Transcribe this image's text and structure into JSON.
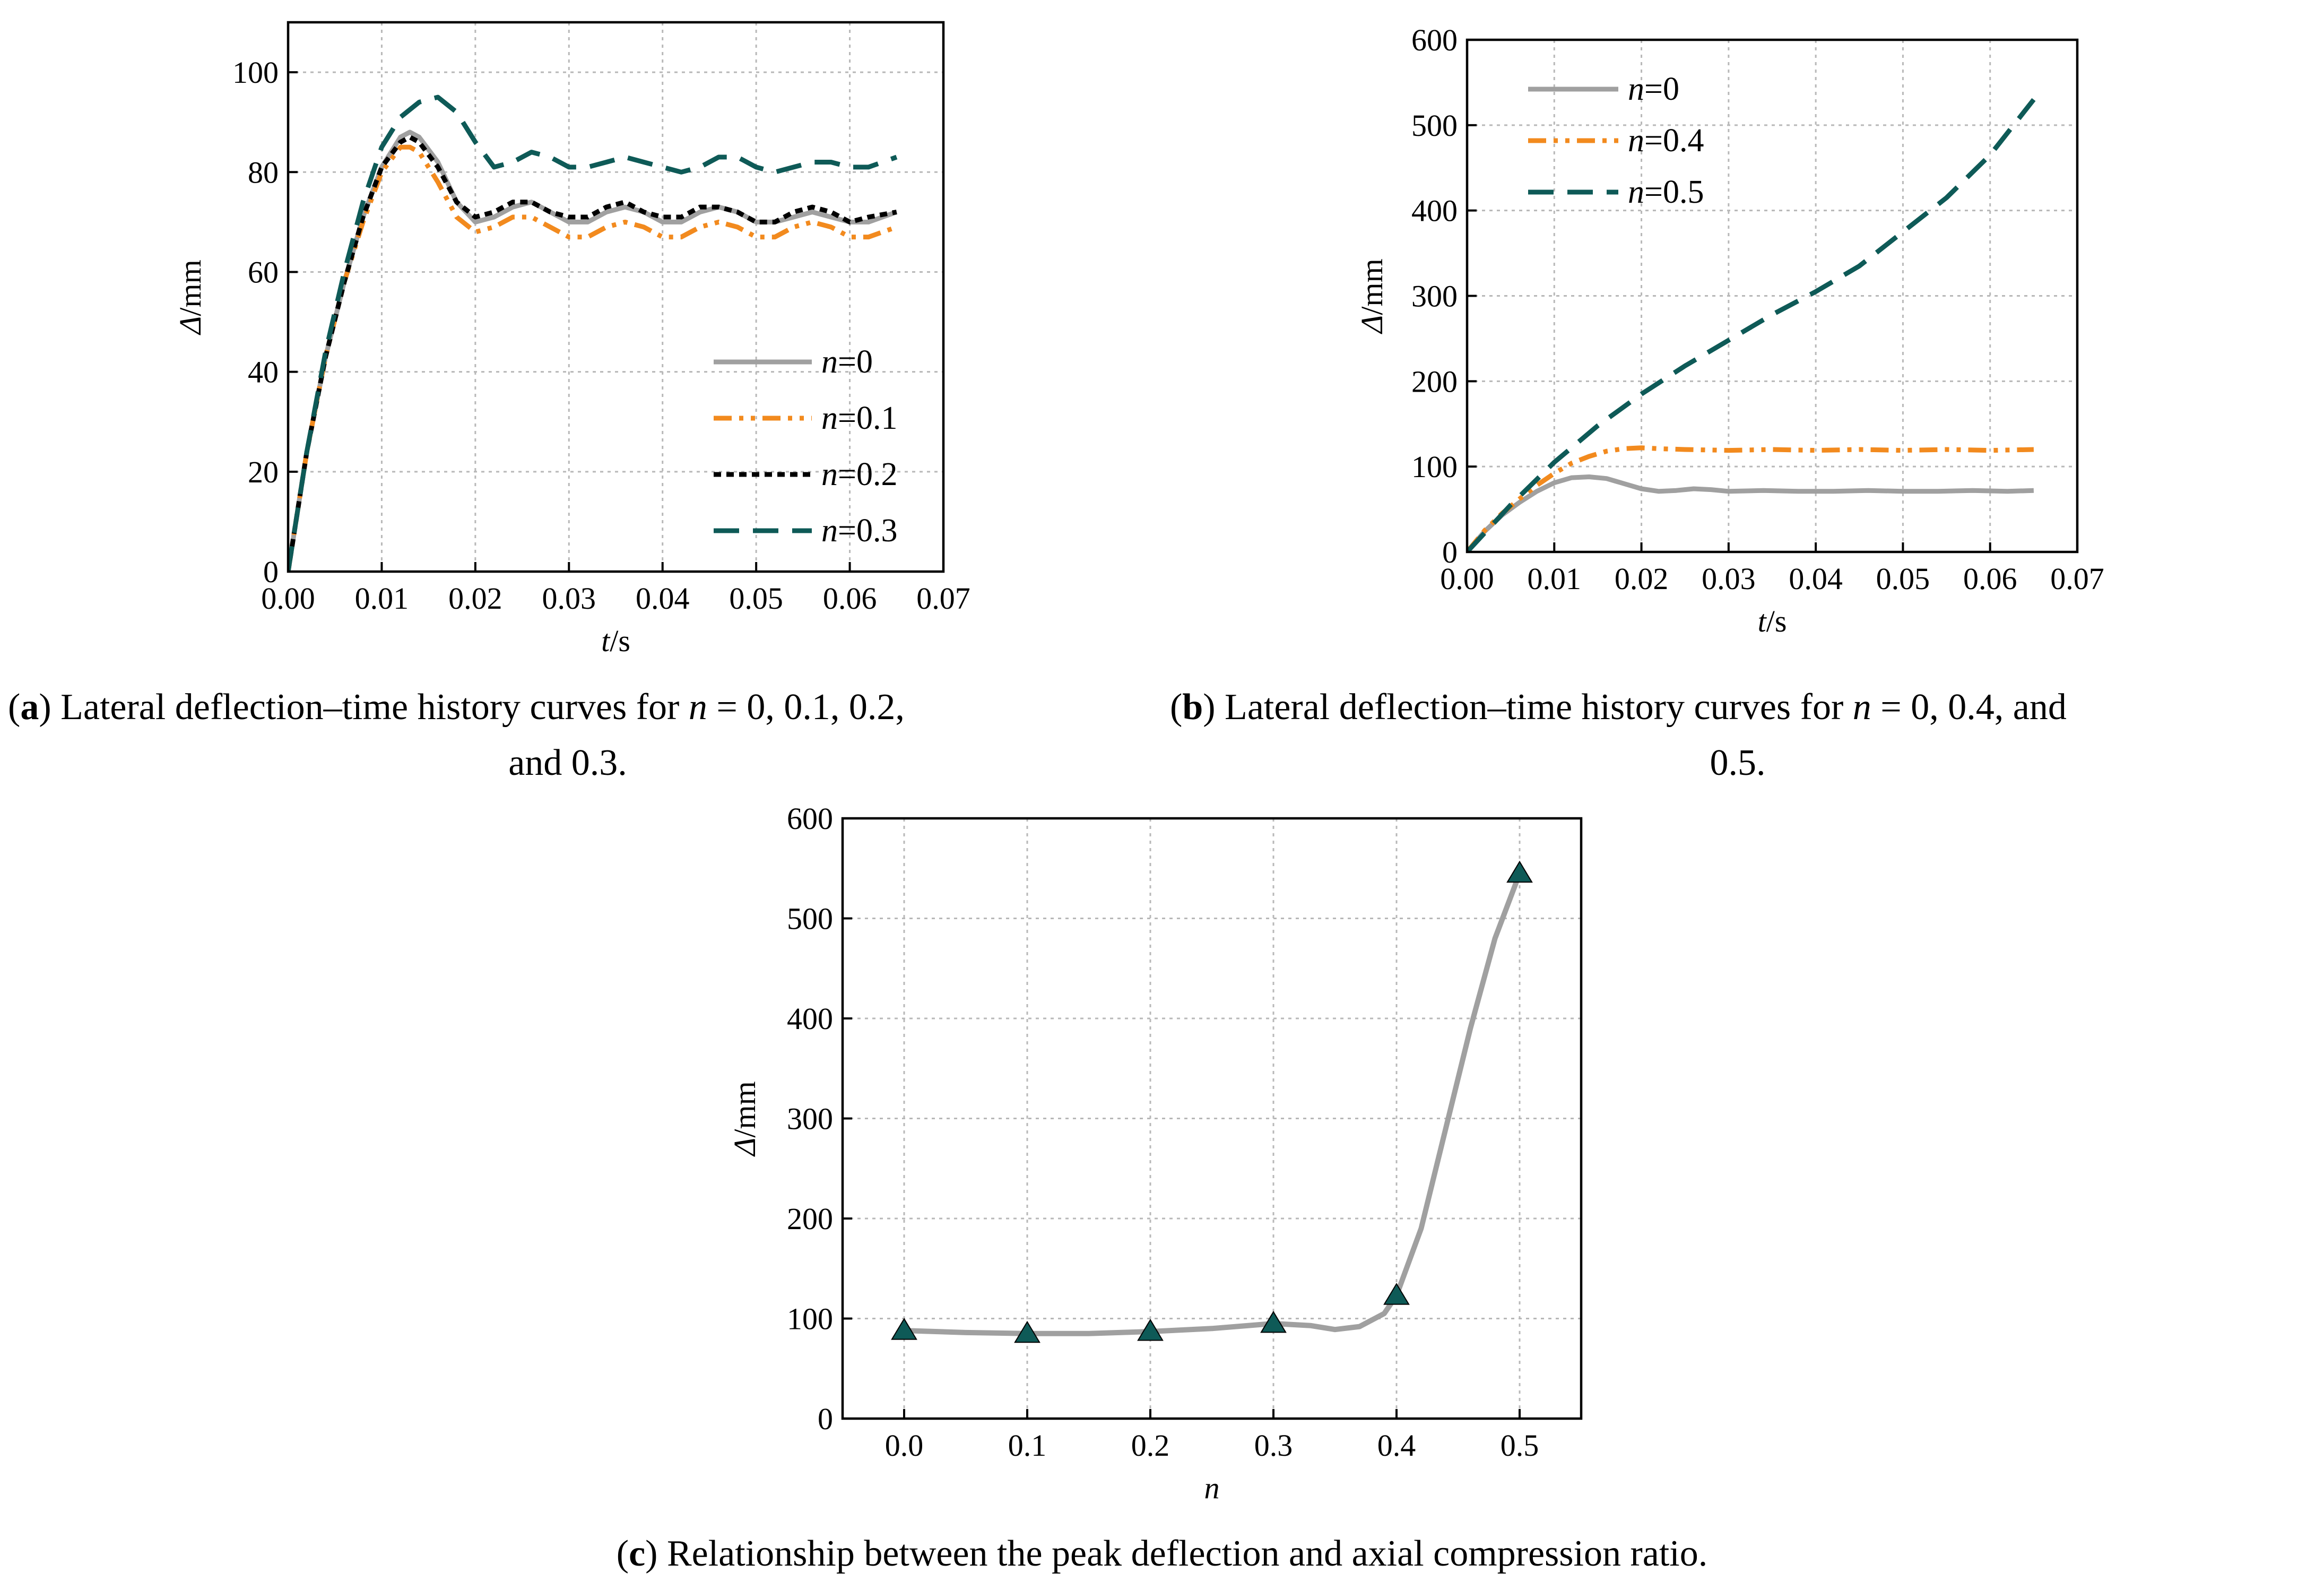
{
  "chart_data": [
    {
      "type": "line",
      "xlabel_var": "t",
      "xlabel_unit": "/s",
      "ylabel_var": "Δ",
      "ylabel_unit": "/mm",
      "xlim": [
        0,
        0.07
      ],
      "ylim": [
        0,
        110
      ],
      "xticks": [
        "0.00",
        "0.01",
        "0.02",
        "0.03",
        "0.04",
        "0.05",
        "0.06",
        "0.07"
      ],
      "yticks": [
        "0",
        "20",
        "40",
        "60",
        "80",
        "100"
      ],
      "grid": true,
      "legend_position": "bottom-right",
      "series": [
        {
          "name_var": "n",
          "name_val": "=0",
          "color": "#a0a0a0",
          "style": "solid",
          "x": [
            0,
            0.002,
            0.004,
            0.006,
            0.008,
            0.01,
            0.012,
            0.013,
            0.014,
            0.016,
            0.018,
            0.02,
            0.022,
            0.024,
            0.026,
            0.028,
            0.03,
            0.032,
            0.034,
            0.036,
            0.038,
            0.04,
            0.042,
            0.044,
            0.046,
            0.048,
            0.05,
            0.052,
            0.054,
            0.056,
            0.058,
            0.06,
            0.062,
            0.065
          ],
          "y": [
            0,
            24,
            43,
            58,
            71,
            81,
            87,
            88,
            87,
            82,
            74,
            70,
            71,
            73,
            74,
            72,
            70,
            70,
            72,
            73,
            72,
            70,
            70,
            72,
            73,
            72,
            70,
            70,
            71,
            72,
            71,
            70,
            70,
            72
          ]
        },
        {
          "name_var": "n",
          "name_val": "=0.1",
          "color": "#f28a1e",
          "style": "dashdotdot",
          "x": [
            0,
            0.002,
            0.004,
            0.006,
            0.008,
            0.01,
            0.012,
            0.013,
            0.014,
            0.016,
            0.018,
            0.02,
            0.022,
            0.024,
            0.026,
            0.028,
            0.03,
            0.032,
            0.034,
            0.036,
            0.038,
            0.04,
            0.042,
            0.044,
            0.046,
            0.048,
            0.05,
            0.052,
            0.054,
            0.056,
            0.058,
            0.06,
            0.062,
            0.065
          ],
          "y": [
            0,
            24,
            43,
            58,
            70,
            80,
            85,
            85,
            84,
            78,
            71,
            68,
            69,
            71,
            71,
            69,
            67,
            67,
            69,
            70,
            69,
            67,
            67,
            69,
            70,
            69,
            67,
            67,
            69,
            70,
            69,
            67,
            67,
            69
          ]
        },
        {
          "name_var": "n",
          "name_val": "=0.2",
          "color": "#000000",
          "style": "dotted",
          "x": [
            0,
            0.002,
            0.004,
            0.006,
            0.008,
            0.01,
            0.012,
            0.013,
            0.014,
            0.016,
            0.018,
            0.02,
            0.022,
            0.024,
            0.026,
            0.028,
            0.03,
            0.032,
            0.034,
            0.036,
            0.038,
            0.04,
            0.042,
            0.044,
            0.046,
            0.048,
            0.05,
            0.052,
            0.054,
            0.056,
            0.058,
            0.06,
            0.062,
            0.065
          ],
          "y": [
            0,
            24,
            43,
            58,
            71,
            81,
            86,
            87,
            86,
            81,
            74,
            71,
            72,
            74,
            74,
            72,
            71,
            71,
            73,
            74,
            72,
            71,
            71,
            73,
            73,
            72,
            70,
            70,
            72,
            73,
            72,
            70,
            71,
            72
          ]
        },
        {
          "name_var": "n",
          "name_val": "=0.3",
          "color": "#0e5a57",
          "style": "dashed",
          "x": [
            0,
            0.002,
            0.004,
            0.006,
            0.008,
            0.01,
            0.012,
            0.014,
            0.016,
            0.018,
            0.02,
            0.022,
            0.024,
            0.026,
            0.028,
            0.03,
            0.032,
            0.034,
            0.036,
            0.038,
            0.04,
            0.042,
            0.044,
            0.046,
            0.048,
            0.05,
            0.052,
            0.054,
            0.056,
            0.058,
            0.06,
            0.062,
            0.065
          ],
          "y": [
            0,
            24,
            44,
            60,
            74,
            85,
            91,
            94,
            95,
            92,
            86,
            81,
            82,
            84,
            83,
            81,
            81,
            82,
            83,
            82,
            81,
            80,
            81,
            83,
            83,
            81,
            80,
            81,
            82,
            82,
            81,
            81,
            83
          ]
        }
      ]
    },
    {
      "type": "line",
      "xlabel_var": "t",
      "xlabel_unit": "/s",
      "ylabel_var": "Δ",
      "ylabel_unit": "/mm",
      "xlim": [
        0,
        0.07
      ],
      "ylim": [
        0,
        600
      ],
      "xticks": [
        "0.00",
        "0.01",
        "0.02",
        "0.03",
        "0.04",
        "0.05",
        "0.06",
        "0.07"
      ],
      "yticks": [
        "0",
        "100",
        "200",
        "300",
        "400",
        "500",
        "600"
      ],
      "grid": true,
      "legend_position": "top-left",
      "series": [
        {
          "name_var": "n",
          "name_val": "=0",
          "color": "#a0a0a0",
          "style": "solid",
          "x": [
            0,
            0.002,
            0.004,
            0.006,
            0.008,
            0.01,
            0.012,
            0.014,
            0.016,
            0.018,
            0.02,
            0.022,
            0.024,
            0.026,
            0.028,
            0.03,
            0.034,
            0.038,
            0.042,
            0.046,
            0.05,
            0.054,
            0.058,
            0.062,
            0.065
          ],
          "y": [
            0,
            24,
            43,
            58,
            71,
            81,
            87,
            88,
            86,
            80,
            74,
            71,
            72,
            74,
            73,
            71,
            72,
            71,
            71,
            72,
            71,
            71,
            72,
            71,
            72
          ]
        },
        {
          "name_var": "n",
          "name_val": "=0.4",
          "color": "#f28a1e",
          "style": "dashdotdot",
          "x": [
            0,
            0.002,
            0.004,
            0.006,
            0.008,
            0.01,
            0.012,
            0.014,
            0.016,
            0.018,
            0.02,
            0.022,
            0.025,
            0.03,
            0.035,
            0.04,
            0.045,
            0.05,
            0.055,
            0.06,
            0.065
          ],
          "y": [
            0,
            25,
            45,
            62,
            78,
            92,
            104,
            112,
            118,
            121,
            122,
            121,
            120,
            119,
            120,
            119,
            120,
            119,
            120,
            119,
            120
          ]
        },
        {
          "name_var": "n",
          "name_val": "=0.5",
          "color": "#0e5a57",
          "style": "dashed",
          "x": [
            0,
            0.005,
            0.01,
            0.015,
            0.02,
            0.025,
            0.03,
            0.035,
            0.04,
            0.045,
            0.05,
            0.055,
            0.06,
            0.065
          ],
          "y": [
            0,
            55,
            105,
            148,
            185,
            218,
            248,
            278,
            305,
            335,
            375,
            415,
            465,
            530
          ]
        }
      ]
    },
    {
      "type": "line",
      "xlabel_var": "n",
      "xlabel_unit": "",
      "ylabel_var": "Δ",
      "ylabel_unit": "/mm",
      "xlim": [
        -0.05,
        0.55
      ],
      "ylim": [
        0,
        600
      ],
      "xticks": [
        "0.0",
        "0.1",
        "0.2",
        "0.3",
        "0.4",
        "0.5"
      ],
      "yticks": [
        "0",
        "100",
        "200",
        "300",
        "400",
        "500",
        "600"
      ],
      "grid": true,
      "markers": {
        "x": [
          0.0,
          0.1,
          0.2,
          0.3,
          0.4,
          0.5
        ],
        "y": [
          88,
          85,
          87,
          95,
          123,
          545
        ],
        "color": "#0e5a57",
        "shape": "triangle"
      },
      "curve": {
        "color": "#a0a0a0",
        "x": [
          0.0,
          0.05,
          0.1,
          0.15,
          0.2,
          0.25,
          0.3,
          0.33,
          0.35,
          0.37,
          0.39,
          0.4,
          0.42,
          0.44,
          0.46,
          0.48,
          0.5
        ],
        "y": [
          88,
          86,
          85,
          85,
          87,
          90,
          95,
          93,
          89,
          92,
          105,
          123,
          190,
          290,
          390,
          480,
          545
        ]
      }
    }
  ],
  "captions": {
    "a": {
      "letter": "a",
      "line1": ") Lateral deflection–time history curves for ",
      "n": "n",
      "line1_rest": " = 0, 0.1, 0.2,",
      "line2": "and 0.3."
    },
    "b": {
      "letter": "b",
      "line1": ") Lateral deflection–time history curves for ",
      "n": "n",
      "line1_rest": " = 0, 0.4, and",
      "line2": "0.5."
    },
    "c": {
      "letter": "c",
      "line1": ") Relationship between the peak deflection and axial compression ratio."
    }
  }
}
